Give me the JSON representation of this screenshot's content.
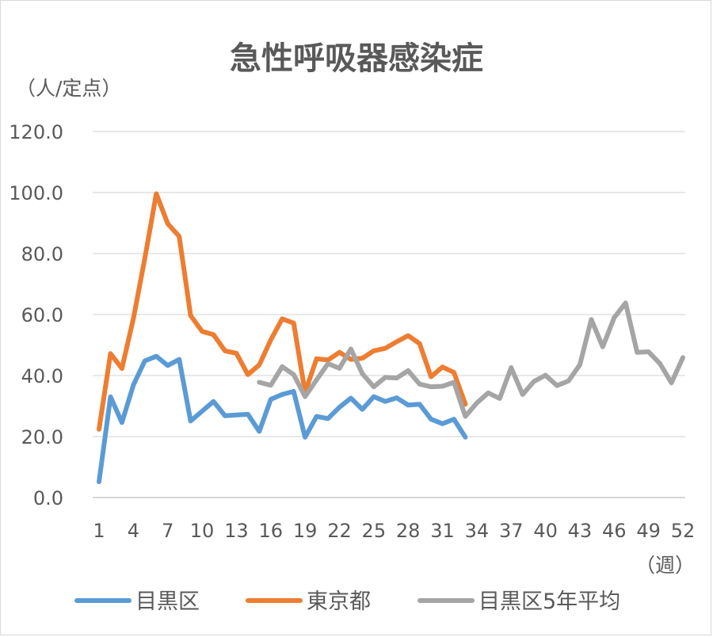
{
  "chart_data": {
    "type": "line",
    "title": "急性呼吸器感染症",
    "ylabel": "（人/定点）",
    "xlabel": "（週）",
    "ylim": [
      0,
      120
    ],
    "xlim": [
      1,
      52
    ],
    "y_ticks": [
      "0.0",
      "20.0",
      "40.0",
      "60.0",
      "80.0",
      "100.0",
      "120.0"
    ],
    "x_ticks": [
      1,
      4,
      7,
      10,
      13,
      16,
      19,
      22,
      25,
      28,
      31,
      34,
      37,
      40,
      43,
      46,
      49,
      52
    ],
    "grid": true,
    "legend_position": "bottom",
    "series": [
      {
        "name": "目黒区",
        "color": "#5b9bd5",
        "x": [
          1,
          2,
          3,
          4,
          5,
          6,
          7,
          8,
          9,
          10,
          11,
          12,
          13,
          14,
          15,
          16,
          17,
          18,
          19,
          20,
          21,
          22,
          23,
          24,
          25,
          26,
          27,
          28,
          29,
          30,
          31,
          32,
          33
        ],
        "values": [
          5.2,
          33.0,
          24.6,
          36.9,
          44.8,
          46.3,
          43.3,
          45.3,
          25.1,
          28.3,
          31.5,
          26.8,
          27.1,
          27.3,
          21.7,
          32.2,
          33.8,
          34.8,
          19.8,
          26.6,
          25.9,
          29.6,
          32.6,
          28.9,
          33.1,
          31.5,
          32.7,
          30.3,
          30.6,
          25.7,
          24.2,
          25.7,
          19.8
        ]
      },
      {
        "name": "東京都",
        "color": "#ed7d31",
        "x": [
          1,
          2,
          3,
          4,
          5,
          6,
          7,
          8,
          9,
          10,
          11,
          12,
          13,
          14,
          15,
          16,
          17,
          18,
          19,
          20,
          21,
          22,
          23,
          24,
          25,
          26,
          27,
          28,
          29,
          30,
          31,
          32,
          33
        ],
        "values": [
          22.4,
          47.2,
          42.3,
          58.7,
          78.4,
          99.6,
          89.8,
          85.6,
          59.7,
          54.5,
          53.4,
          48.1,
          47.3,
          40.3,
          43.5,
          51.7,
          58.6,
          57.2,
          34.5,
          45.5,
          45.1,
          47.6,
          45.3,
          45.7,
          48.1,
          48.9,
          51.1,
          53.1,
          50.5,
          39.6,
          42.8,
          41.0,
          30.6
        ]
      },
      {
        "name": "目黒区5年平均",
        "color": "#a5a5a5",
        "x": [
          15,
          16,
          17,
          18,
          19,
          20,
          21,
          22,
          23,
          24,
          25,
          26,
          27,
          28,
          29,
          30,
          31,
          32,
          33,
          34,
          35,
          36,
          37,
          38,
          39,
          40,
          41,
          42,
          43,
          44,
          45,
          46,
          47,
          48,
          49,
          50,
          51,
          52
        ],
        "values": [
          37.8,
          36.8,
          42.9,
          40.3,
          33.1,
          38.6,
          43.9,
          42.4,
          48.7,
          40.6,
          36.3,
          39.4,
          39.2,
          41.6,
          37.2,
          36.3,
          36.5,
          37.8,
          26.6,
          31.0,
          34.3,
          32.5,
          42.6,
          33.8,
          38.1,
          40.1,
          36.7,
          38.2,
          43.5,
          58.4,
          49.4,
          59.0,
          63.8,
          47.6,
          47.8,
          43.9,
          37.6,
          45.9
        ]
      }
    ]
  }
}
